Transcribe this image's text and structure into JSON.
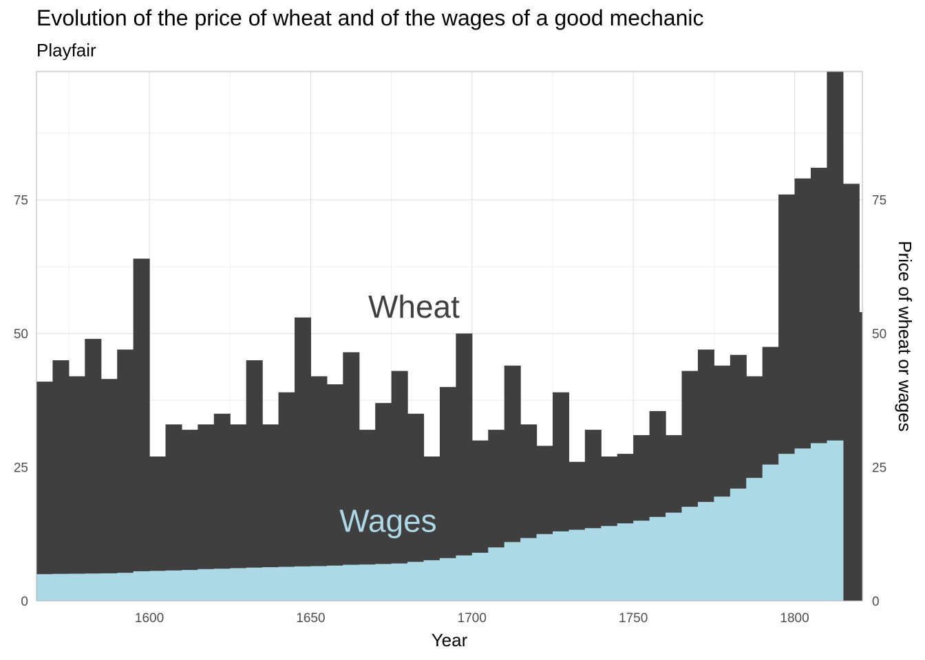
{
  "chart_data": {
    "type": "bar",
    "title": "Evolution of the price of wheat and of the wages of a good mechanic",
    "subtitle": "Playfair",
    "xlabel": "Year",
    "ylabel_right": "Price of wheat or wages",
    "xlim": [
      1565,
      1821
    ],
    "ylim": [
      0,
      99
    ],
    "x_ticks": [
      1600,
      1650,
      1700,
      1750,
      1800
    ],
    "y_ticks": [
      0,
      25,
      50,
      75
    ],
    "grid": true,
    "colors": {
      "wheat": "#3f3f3f",
      "wages": "#add8e6",
      "annotation_wheat": "#3f3f3f",
      "annotation_wages": "#add8e6"
    },
    "annotations": [
      {
        "text": "Wheat",
        "x": 1682,
        "y": 55
      },
      {
        "text": "Wages",
        "x": 1674,
        "y": 15
      }
    ],
    "series": [
      {
        "name": "Wheat",
        "x": [
          1565,
          1570,
          1575,
          1580,
          1585,
          1590,
          1595,
          1600,
          1605,
          1610,
          1615,
          1620,
          1625,
          1630,
          1635,
          1640,
          1645,
          1650,
          1655,
          1660,
          1665,
          1670,
          1675,
          1680,
          1685,
          1690,
          1695,
          1700,
          1705,
          1710,
          1715,
          1720,
          1725,
          1730,
          1735,
          1740,
          1745,
          1750,
          1755,
          1760,
          1765,
          1770,
          1775,
          1780,
          1785,
          1790,
          1795,
          1800,
          1805,
          1810,
          1815,
          1820
        ],
        "values": [
          41,
          45,
          42,
          49,
          41.5,
          47,
          64,
          27,
          33,
          32,
          33,
          35,
          33,
          45,
          33,
          39,
          53,
          42,
          40.5,
          46.5,
          32,
          37,
          43,
          35,
          27,
          40,
          50,
          30,
          32,
          44,
          33,
          29,
          39,
          26,
          32,
          27,
          27.5,
          31,
          35.5,
          31,
          43,
          47,
          44,
          46,
          42,
          47.5,
          76,
          79,
          81,
          99,
          78,
          54
        ]
      },
      {
        "name": "Wages",
        "x": [
          1565,
          1570,
          1575,
          1580,
          1585,
          1590,
          1595,
          1600,
          1605,
          1610,
          1615,
          1620,
          1625,
          1630,
          1635,
          1640,
          1645,
          1650,
          1655,
          1660,
          1665,
          1670,
          1675,
          1680,
          1685,
          1690,
          1695,
          1700,
          1705,
          1710,
          1715,
          1720,
          1725,
          1730,
          1735,
          1740,
          1745,
          1750,
          1755,
          1760,
          1765,
          1770,
          1775,
          1780,
          1785,
          1790,
          1795,
          1800,
          1805,
          1810
        ],
        "values": [
          5,
          5.05,
          5.08,
          5.12,
          5.15,
          5.25,
          5.54,
          5.61,
          5.69,
          5.78,
          5.94,
          6.01,
          6.12,
          6.22,
          6.3,
          6.37,
          6.45,
          6.5,
          6.6,
          6.75,
          6.8,
          6.9,
          7,
          7.3,
          7.6,
          8,
          8.5,
          9,
          10,
          11,
          11.75,
          12.5,
          13,
          13.3,
          13.6,
          14,
          14.5,
          15,
          15.7,
          16.5,
          17.6,
          18.5,
          19.5,
          21,
          23,
          25.5,
          27.5,
          28.5,
          29.5,
          30
        ]
      }
    ]
  }
}
